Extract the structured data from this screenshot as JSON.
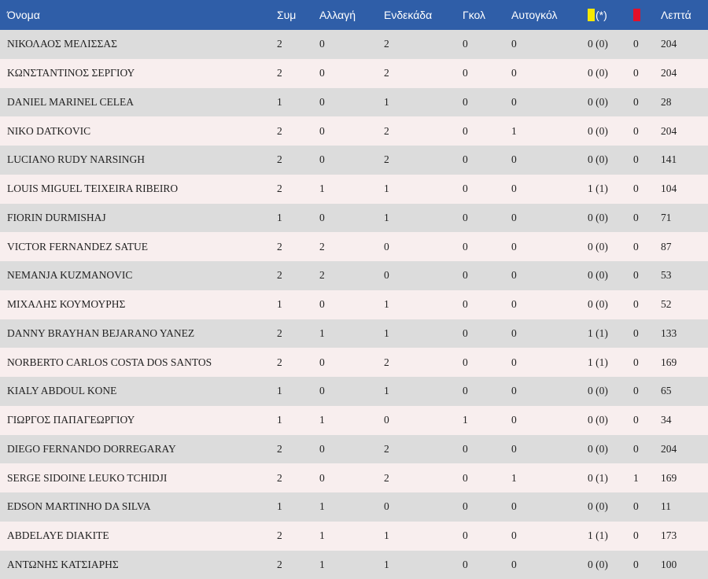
{
  "headers": {
    "name": "Όνομα",
    "apps": "Συμ",
    "subs": "Αλλαγή",
    "starts": "Ενδεκάδα",
    "goals": "Γκολ",
    "own_goals": "Αυτογκόλ",
    "yellow_suffix": "(*)",
    "minutes": "Λεπτά"
  },
  "colors": {
    "header_bg": "#2f5ea8",
    "row_odd": "#dcdcdc",
    "row_even": "#f8eeee",
    "yellow_card": "#f6e800",
    "red_card": "#e3102a"
  },
  "icons": {
    "yellow": "yellow-card-icon",
    "red": "red-card-icon"
  },
  "rows": [
    {
      "name": "ΝΙΚΟΛΑΟΣ ΜΕΛΙΣΣΑΣ",
      "apps": "2",
      "subs": "0",
      "starts": "2",
      "goals": "0",
      "own_goals": "0",
      "yellow": "0 (0)",
      "red": "0",
      "minutes": "204"
    },
    {
      "name": "ΚΩΝΣΤΑΝΤΙΝΟΣ ΣΕΡΓΙΟΥ",
      "apps": "2",
      "subs": "0",
      "starts": "2",
      "goals": "0",
      "own_goals": "0",
      "yellow": "0 (0)",
      "red": "0",
      "minutes": "204"
    },
    {
      "name": "DANIEL MARINEL CELEA",
      "apps": "1",
      "subs": "0",
      "starts": "1",
      "goals": "0",
      "own_goals": "0",
      "yellow": "0 (0)",
      "red": "0",
      "minutes": "28"
    },
    {
      "name": "NIKO DATKOVIC",
      "apps": "2",
      "subs": "0",
      "starts": "2",
      "goals": "0",
      "own_goals": "1",
      "yellow": "0 (0)",
      "red": "0",
      "minutes": "204"
    },
    {
      "name": "LUCIANO RUDY NARSINGH",
      "apps": "2",
      "subs": "0",
      "starts": "2",
      "goals": "0",
      "own_goals": "0",
      "yellow": "0 (0)",
      "red": "0",
      "minutes": "141"
    },
    {
      "name": "LOUIS MIGUEL TEIXEIRA RIBEIRO",
      "apps": "2",
      "subs": "1",
      "starts": "1",
      "goals": "0",
      "own_goals": "0",
      "yellow": "1 (1)",
      "red": "0",
      "minutes": "104"
    },
    {
      "name": "FIORIN DURMISHAJ",
      "apps": "1",
      "subs": "0",
      "starts": "1",
      "goals": "0",
      "own_goals": "0",
      "yellow": "0 (0)",
      "red": "0",
      "minutes": "71"
    },
    {
      "name": "VICTOR FERNANDEZ SATUE",
      "apps": "2",
      "subs": "2",
      "starts": "0",
      "goals": "0",
      "own_goals": "0",
      "yellow": "0 (0)",
      "red": "0",
      "minutes": "87"
    },
    {
      "name": "NEMANJA KUZMANOVIC",
      "apps": "2",
      "subs": "2",
      "starts": "0",
      "goals": "0",
      "own_goals": "0",
      "yellow": "0 (0)",
      "red": "0",
      "minutes": "53"
    },
    {
      "name": "ΜΙΧΑΛΗΣ ΚΟΥΜΟΥΡΗΣ",
      "apps": "1",
      "subs": "0",
      "starts": "1",
      "goals": "0",
      "own_goals": "0",
      "yellow": "0 (0)",
      "red": "0",
      "minutes": "52"
    },
    {
      "name": "DANNY BRAYHAN BEJARANO YANEZ",
      "apps": "2",
      "subs": "1",
      "starts": "1",
      "goals": "0",
      "own_goals": "0",
      "yellow": "1 (1)",
      "red": "0",
      "minutes": "133"
    },
    {
      "name": "NORBERTO CARLOS COSTA DOS SANTOS",
      "apps": "2",
      "subs": "0",
      "starts": "2",
      "goals": "0",
      "own_goals": "0",
      "yellow": "1 (1)",
      "red": "0",
      "minutes": "169"
    },
    {
      "name": "KIALY ABDOUL KONE",
      "apps": "1",
      "subs": "0",
      "starts": "1",
      "goals": "0",
      "own_goals": "0",
      "yellow": "0 (0)",
      "red": "0",
      "minutes": "65"
    },
    {
      "name": "ΓΙΩΡΓΟΣ ΠΑΠΑΓΕΩΡΓΙΟΥ",
      "apps": "1",
      "subs": "1",
      "starts": "0",
      "goals": "1",
      "own_goals": "0",
      "yellow": "0 (0)",
      "red": "0",
      "minutes": "34"
    },
    {
      "name": "DIEGO FERNANDO DORREGARAY",
      "apps": "2",
      "subs": "0",
      "starts": "2",
      "goals": "0",
      "own_goals": "0",
      "yellow": "0 (0)",
      "red": "0",
      "minutes": "204"
    },
    {
      "name": "SERGE SIDOINE LEUKO TCHIDJI",
      "apps": "2",
      "subs": "0",
      "starts": "2",
      "goals": "0",
      "own_goals": "1",
      "yellow": "0 (1)",
      "red": "1",
      "minutes": "169"
    },
    {
      "name": "EDSON MARTINHO DA SILVA",
      "apps": "1",
      "subs": "1",
      "starts": "0",
      "goals": "0",
      "own_goals": "0",
      "yellow": "0 (0)",
      "red": "0",
      "minutes": "11"
    },
    {
      "name": "ABDELAYE DIAKITE",
      "apps": "2",
      "subs": "1",
      "starts": "1",
      "goals": "0",
      "own_goals": "0",
      "yellow": "1 (1)",
      "red": "0",
      "minutes": "173"
    },
    {
      "name": "ΑΝΤΩΝΗΣ ΚΑΤΣΙΑΡΗΣ",
      "apps": "2",
      "subs": "1",
      "starts": "1",
      "goals": "0",
      "own_goals": "0",
      "yellow": "0 (0)",
      "red": "0",
      "minutes": "100"
    }
  ]
}
